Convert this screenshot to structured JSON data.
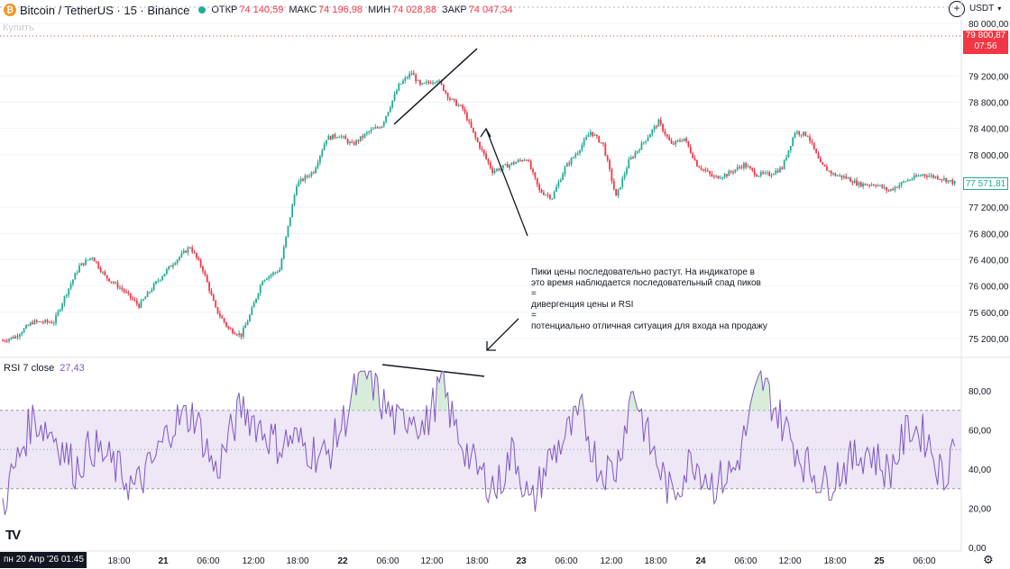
{
  "header": {
    "coin_icon": "bitcoin-icon",
    "symbol": "Bitcoin / TetherUS · 15 · Binance",
    "open_label": "ОТКР",
    "open": "74 140,59",
    "high_label": "МАКС",
    "high": "74 196,98",
    "low_label": "МИН",
    "low": "74 028,88",
    "close_label": "ЗАКР",
    "close": "74 047,34",
    "ghost_tag": "Купить",
    "currency": "USDT",
    "scale_icon": "plus-circle-icon"
  },
  "price_tags": {
    "top_value": "79 800,87",
    "top_time": "07:56",
    "current": "77 571,81"
  },
  "annotation": {
    "line1": "Пики цены последовательно растут. На индикаторе в",
    "line2": "это время наблюдается последовательный спад пиков",
    "eq1": "=",
    "line3": "дивергенция цены и RSI",
    "eq2": "=",
    "line4": "потенциально отличная ситуация для входа на продажу"
  },
  "rsi": {
    "label": "RSI 7 close",
    "value": "27,43"
  },
  "date_tag": "пн 20 Апр '26   01:45",
  "colors": {
    "up": "#22ab94",
    "down": "#f23645",
    "rsi_line": "#7e57c2",
    "rsi_band": "#ede7f6",
    "current_tag": "#22ab94",
    "top_tag": "#f23645"
  },
  "chart_data": [
    {
      "type": "candlestick",
      "y_ticks": [
        "80 000,00",
        "79 200,00",
        "78 800,00",
        "78 400,00",
        "78 000,00",
        "77 200,00",
        "76 800,00",
        "76 400,00",
        "76 000,00",
        "75 600,00",
        "75 200,00"
      ],
      "ylim": [
        75100,
        80050
      ],
      "x_ticks": [
        "18:00",
        "21",
        "06:00",
        "12:00",
        "18:00",
        "22",
        "06:00",
        "12:00",
        "18:00",
        "23",
        "06:00",
        "12:00",
        "18:00",
        "24",
        "06:00",
        "12:00",
        "18:00",
        "25",
        "06:00"
      ],
      "anchors": [
        [
          0,
          75170
        ],
        [
          6,
          75230
        ],
        [
          14,
          75450
        ],
        [
          24,
          75450
        ],
        [
          30,
          75900
        ],
        [
          36,
          76300
        ],
        [
          42,
          76450
        ],
        [
          48,
          76150
        ],
        [
          56,
          75950
        ],
        [
          64,
          75700
        ],
        [
          72,
          76050
        ],
        [
          80,
          76350
        ],
        [
          88,
          76600
        ],
        [
          94,
          76250
        ],
        [
          100,
          75650
        ],
        [
          106,
          75350
        ],
        [
          112,
          75250
        ],
        [
          116,
          75550
        ],
        [
          122,
          76100
        ],
        [
          130,
          76250
        ],
        [
          138,
          77550
        ],
        [
          146,
          77750
        ],
        [
          152,
          78250
        ],
        [
          158,
          78300
        ],
        [
          164,
          78150
        ],
        [
          172,
          78350
        ],
        [
          178,
          78450
        ],
        [
          186,
          79050
        ],
        [
          192,
          79250
        ],
        [
          196,
          79050
        ],
        [
          204,
          79150
        ],
        [
          210,
          78850
        ],
        [
          216,
          78700
        ],
        [
          222,
          78250
        ],
        [
          230,
          77750
        ],
        [
          238,
          77850
        ],
        [
          246,
          77950
        ],
        [
          252,
          77450
        ],
        [
          258,
          77350
        ],
        [
          264,
          77800
        ],
        [
          270,
          78050
        ],
        [
          276,
          78350
        ],
        [
          282,
          78150
        ],
        [
          288,
          77350
        ],
        [
          294,
          77900
        ],
        [
          300,
          78150
        ],
        [
          308,
          78500
        ],
        [
          314,
          78150
        ],
        [
          320,
          78250
        ],
        [
          326,
          77850
        ],
        [
          334,
          77650
        ],
        [
          340,
          77700
        ],
        [
          348,
          77850
        ],
        [
          354,
          77700
        ],
        [
          360,
          77700
        ],
        [
          366,
          77800
        ],
        [
          372,
          78350
        ],
        [
          378,
          78300
        ],
        [
          384,
          77850
        ],
        [
          390,
          77700
        ],
        [
          396,
          77650
        ],
        [
          402,
          77550
        ],
        [
          410,
          77550
        ],
        [
          416,
          77450
        ],
        [
          424,
          77600
        ],
        [
          432,
          77700
        ],
        [
          440,
          77650
        ],
        [
          447,
          77570
        ]
      ]
    },
    {
      "type": "line",
      "name": "RSI 7 close",
      "y_ticks": [
        "80,00",
        "60,00",
        "40,00",
        "20,00",
        "0,00"
      ],
      "ylim": [
        0,
        100
      ],
      "bands": [
        30,
        50,
        70
      ],
      "anchors": [
        [
          0,
          22
        ],
        [
          8,
          48
        ],
        [
          14,
          66
        ],
        [
          24,
          58
        ],
        [
          34,
          40
        ],
        [
          42,
          52
        ],
        [
          52,
          42
        ],
        [
          62,
          30
        ],
        [
          70,
          42
        ],
        [
          80,
          64
        ],
        [
          90,
          68
        ],
        [
          100,
          38
        ],
        [
          112,
          72
        ],
        [
          122,
          60
        ],
        [
          130,
          52
        ],
        [
          136,
          56
        ],
        [
          144,
          50
        ],
        [
          152,
          46
        ],
        [
          160,
          64
        ],
        [
          166,
          82
        ],
        [
          172,
          88
        ],
        [
          178,
          74
        ],
        [
          186,
          62
        ],
        [
          192,
          70
        ],
        [
          198,
          60
        ],
        [
          206,
          84
        ],
        [
          212,
          62
        ],
        [
          222,
          40
        ],
        [
          232,
          30
        ],
        [
          240,
          50
        ],
        [
          248,
          20
        ],
        [
          256,
          44
        ],
        [
          264,
          56
        ],
        [
          272,
          68
        ],
        [
          280,
          40
        ],
        [
          288,
          40
        ],
        [
          296,
          82
        ],
        [
          304,
          52
        ],
        [
          314,
          26
        ],
        [
          324,
          46
        ],
        [
          334,
          32
        ],
        [
          344,
          40
        ],
        [
          356,
          86
        ],
        [
          366,
          64
        ],
        [
          376,
          44
        ],
        [
          386,
          32
        ],
        [
          396,
          42
        ],
        [
          406,
          50
        ],
        [
          416,
          38
        ],
        [
          426,
          62
        ],
        [
          434,
          56
        ],
        [
          442,
          34
        ],
        [
          447,
          58
        ]
      ]
    }
  ]
}
